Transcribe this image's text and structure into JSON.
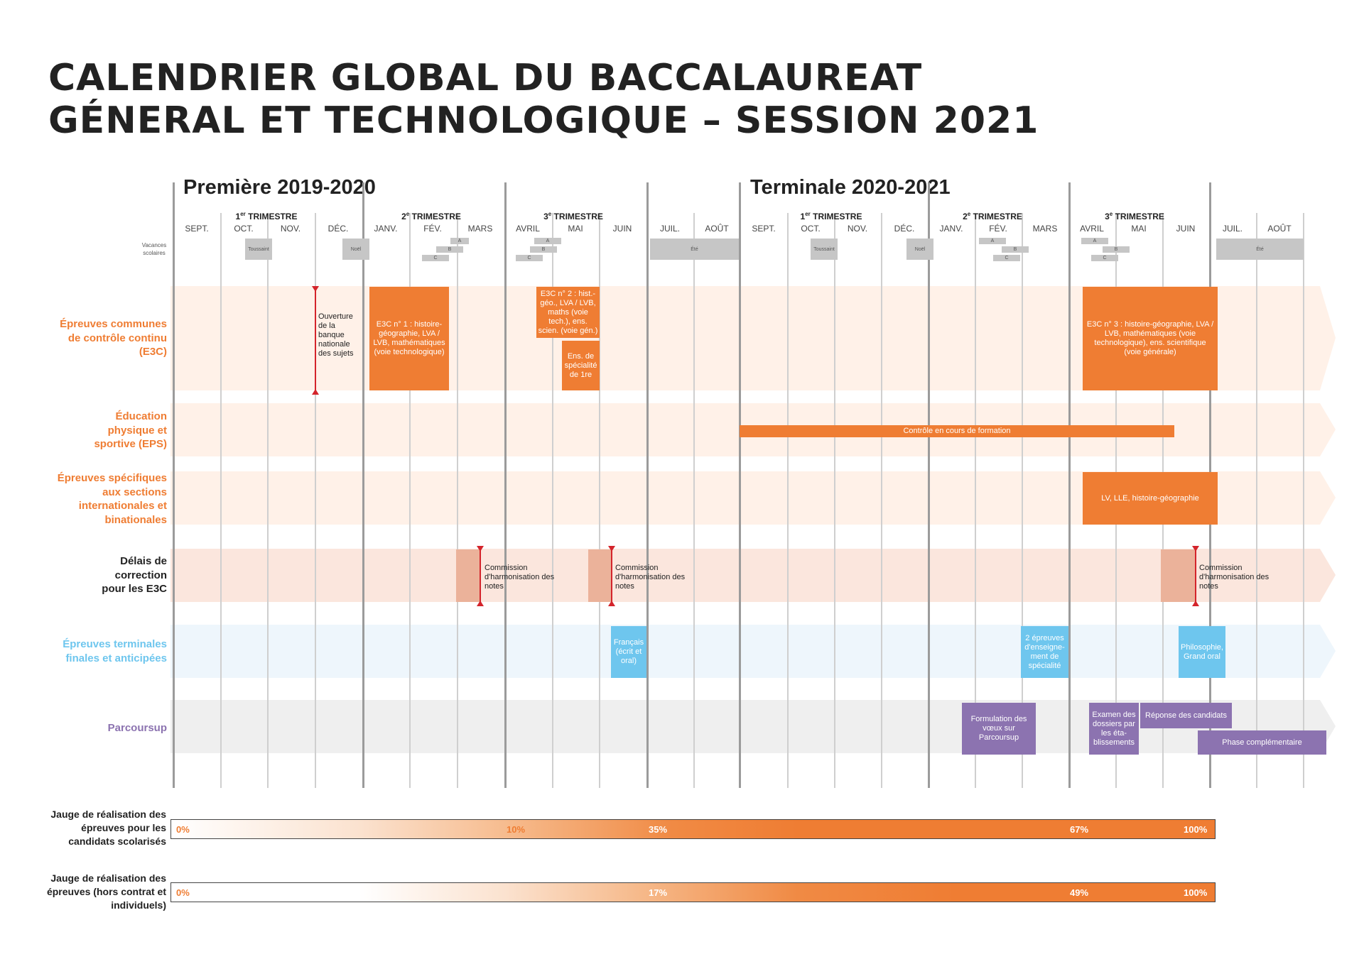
{
  "title": {
    "line1": "CALENDRIER GLOBAL DU BACCALAUREAT",
    "line2": "GÉNERAL ET TECHNOLOGIQUE – SESSION 2021"
  },
  "years": {
    "premiere": "Première 2019-2020",
    "terminale": "Terminale 2020-2021"
  },
  "trimesters": {
    "t1": {
      "num": "1",
      "sup": "er",
      "label": " TRIMESTRE"
    },
    "t2": {
      "num": "2",
      "sup": "e",
      "label": " TRIMESTRE"
    },
    "t3": {
      "num": "3",
      "sup": "e",
      "label": " TRIMESTRE"
    }
  },
  "months": [
    "SEPT.",
    "OCT.",
    "NOV.",
    "DÉC.",
    "JANV.",
    "FÉV.",
    "MARS",
    "AVRIL",
    "MAI",
    "JUIN",
    "JUIL.",
    "AOÛT"
  ],
  "vacances": {
    "label": "Vacances scolaires",
    "toussaint": "Toussaint",
    "noel": "Noël",
    "ete": "Été",
    "zone_a": "A",
    "zone_b": "B",
    "zone_c": "C"
  },
  "rows": {
    "e3c": "Épreuves communes de contrôle continu (E3C)",
    "eps": "Éducation physique et sportive (EPS)",
    "sections": "Épreuves spécifiques aux sections internationales et binationales",
    "delais": "Délais de correction pour les E3C",
    "terminales": "Épreuves terminales finales et anticipées",
    "parcoursup": "Parcoursup"
  },
  "events": {
    "ouverture": "Ouverture de la banque nationale des sujets",
    "e3c1": "E3C n° 1 : histoire-géographie, LVA / LVB, mathématiques (voie technologique)",
    "e3c2": "E3C n° 2 : hist.-géo., LVA / LVB, maths (voie tech.), ens. scien. (voie gén.)",
    "ens_spe": "Ens. de spécialité de 1re",
    "e3c3": "E3C n° 3 : histoire-géographie, LVA / LVB, mathématiques (voie technologique), ens. scientifique (voie générale)",
    "ccf": "Contrôle en cours de formation",
    "sections_box": "LV, LLE, histoire-géographie",
    "commission": "Commission d'harmonisation des notes",
    "francais": "Français (écrit et oral)",
    "specialite2": "2 épreuves d'enseigne-ment de spécialité",
    "philo": "Philosophie, Grand oral",
    "formulation": "Formulation des vœux sur Parcoursup",
    "examen": "Examen des dossiers par les éta-blissements",
    "reponse": "Réponse des candidats",
    "complementaire": "Phase complémentaire"
  },
  "gauges": {
    "g1": {
      "label": "Jauge de réalisation des épreuves pour les candidats scolarisés",
      "p0": "0%",
      "p1": "10%",
      "p2": "35%",
      "p3": "67%",
      "p4": "100%"
    },
    "g2": {
      "label": "Jauge de réalisation des épreuves (hors contrat et individuels)",
      "p0": "0%",
      "p1": "17%",
      "p2": "49%",
      "p3": "100%"
    }
  },
  "colors": {
    "orange": "#ef7d33",
    "salmon": "#ebb29a",
    "light_blue": "#6ec6ee",
    "purple": "#8c73b0",
    "red_marker": "#d4242b",
    "gray_vacances": "#c6c6c6"
  }
}
